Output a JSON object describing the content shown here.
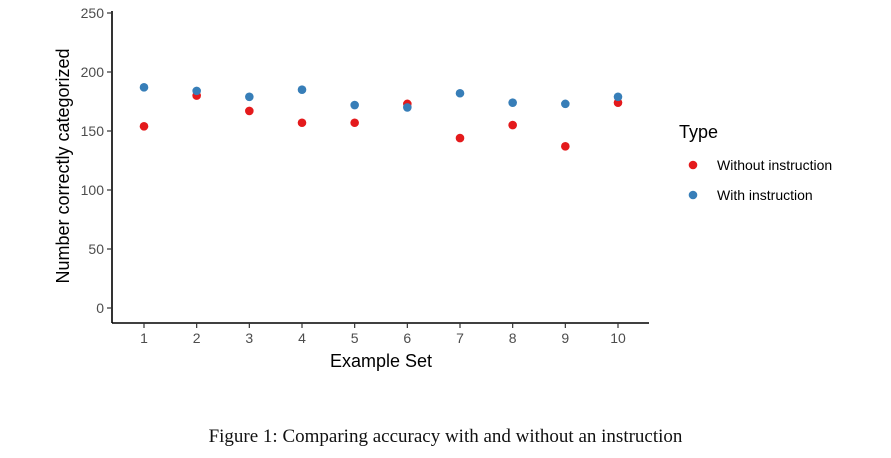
{
  "chart_data": {
    "type": "scatter",
    "x": [
      1,
      2,
      3,
      4,
      5,
      6,
      7,
      8,
      9,
      10
    ],
    "xlabel": "Example Set",
    "ylabel": "Number correctly categorized",
    "ylim": [
      0,
      250
    ],
    "yticks": [
      0,
      50,
      100,
      150,
      200,
      250
    ],
    "xticks": [
      1,
      2,
      3,
      4,
      5,
      6,
      7,
      8,
      9,
      10
    ],
    "grid": false,
    "legend": {
      "title": "Type",
      "placement": "right"
    },
    "series": [
      {
        "name": "Without instruction",
        "color": "#e41a1c",
        "values": [
          154,
          180,
          167,
          157,
          157,
          173,
          144,
          155,
          137,
          174
        ]
      },
      {
        "name": "With instruction",
        "color": "#377eb8",
        "values": [
          187,
          184,
          179,
          185,
          172,
          170,
          182,
          174,
          173,
          179
        ]
      }
    ]
  },
  "caption": "Figure 1: Comparing accuracy with and without an instruction"
}
